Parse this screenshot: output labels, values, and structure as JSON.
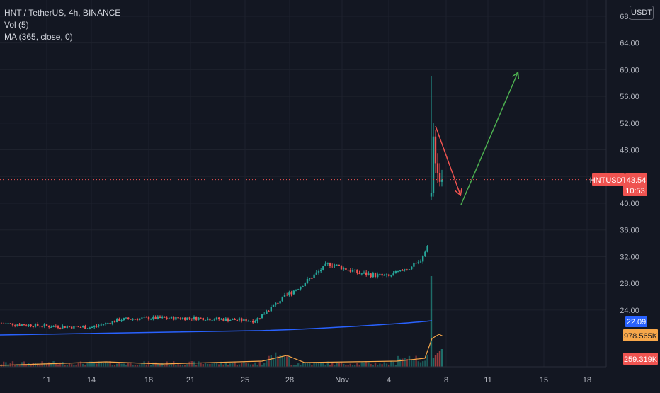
{
  "legend": {
    "symbol": "HNT / TetherUS, 4h, BINANCE",
    "volume": "Vol (5)",
    "ma": "MA (365, close, 0)"
  },
  "currency_button": "USDT",
  "colors": {
    "background": "#131722",
    "grid": "#1e222d",
    "up": "#26a69a",
    "down": "#ef5350",
    "ma_line": "#2962ff",
    "vol_ma": "#f7a74a",
    "arrow_down": "#ef5350",
    "arrow_up": "#4caf50",
    "axis_text": "#b2b5be"
  },
  "chart_data": {
    "type": "candlestick",
    "y_ticks": [
      "24.00",
      "28.00",
      "32.00",
      "36.00",
      "40.00",
      "44.00",
      "48.00",
      "52.00",
      "56.00",
      "60.00",
      "64.00",
      "68.00"
    ],
    "x_ticks": [
      "11",
      "14",
      "18",
      "21",
      "25",
      "28",
      "Nov",
      "4",
      "8",
      "11",
      "15",
      "18"
    ],
    "labels": {
      "price_symbol": "HNTUSDT",
      "price": "43.54",
      "countdown": "10:53",
      "ma_value": "22.09",
      "vol_ma_value": "978.565K",
      "volume_value": "259.319K"
    },
    "approx_close_series": [
      {
        "date": "Oct 8",
        "close": 22.0
      },
      {
        "date": "Oct 11",
        "close": 21.6
      },
      {
        "date": "Oct 14",
        "close": 21.4
      },
      {
        "date": "Oct 16",
        "close": 22.6
      },
      {
        "date": "Oct 18",
        "close": 22.8
      },
      {
        "date": "Oct 21",
        "close": 22.8
      },
      {
        "date": "Oct 25",
        "close": 22.4
      },
      {
        "date": "Oct 27",
        "close": 26.0
      },
      {
        "date": "Oct 28",
        "close": 27.5
      },
      {
        "date": "Oct 30",
        "close": 31.0
      },
      {
        "date": "Nov 1",
        "close": 29.5
      },
      {
        "date": "Nov 3",
        "close": 29.0
      },
      {
        "date": "Nov 5",
        "close": 31.0
      },
      {
        "date": "Nov 6",
        "close": 35.0
      },
      {
        "date": "Nov 7",
        "close": 41.0
      },
      {
        "date": "Nov 7",
        "close": 50.0
      },
      {
        "date": "Nov 8",
        "close": 43.54
      }
    ],
    "ma_series": [
      {
        "date": "Oct 8",
        "value": 21.5
      },
      {
        "date": "Oct 25",
        "value": 21.9
      },
      {
        "date": "Nov 7",
        "value": 22.09
      }
    ],
    "annotations": [
      {
        "type": "arrow",
        "direction": "down",
        "from": {
          "date": "Nov 7",
          "price": 52.0
        },
        "to": {
          "date": "Nov 9",
          "price": 41.0
        }
      },
      {
        "type": "arrow",
        "direction": "up",
        "from": {
          "date": "Nov 9",
          "price": 40.0
        },
        "to": {
          "date": "Nov 14",
          "price": 60.0
        }
      }
    ],
    "current_price_line": 43.54
  }
}
